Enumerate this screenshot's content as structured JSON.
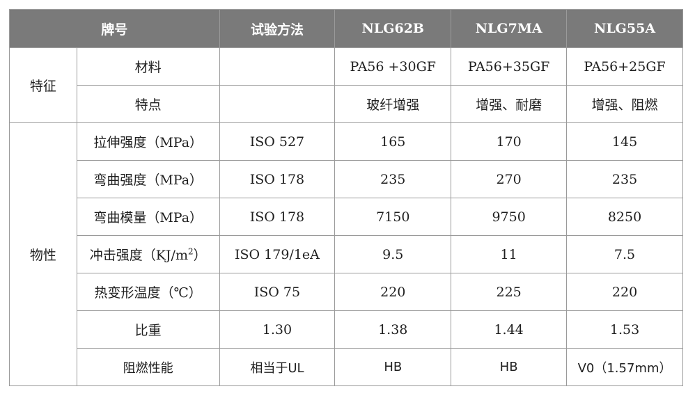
{
  "header": {
    "brand": "牌号",
    "method": "试验方法",
    "col1": "NLG62B",
    "col2": "NLG7MA",
    "col3": "NLG55A"
  },
  "groups": {
    "features": "特征",
    "properties": "物性"
  },
  "rows": [
    {
      "label": "材料",
      "method": "",
      "v1": "PA56 +30GF",
      "v2": "PA56+35GF",
      "v3": "PA56+25GF"
    },
    {
      "label": "特点",
      "method": "",
      "v1": "玻纤增强",
      "v2": "增强、耐磨",
      "v3": "增强、阻燃"
    },
    {
      "label": "拉伸强度（MPa）",
      "method": "ISO 527",
      "v1": "165",
      "v2": "170",
      "v3": "145"
    },
    {
      "label": "弯曲强度（MPa）",
      "method": "ISO 178",
      "v1": "235",
      "v2": "270",
      "v3": "235"
    },
    {
      "label": "弯曲模量（MPa）",
      "method": "ISO 178",
      "v1": "7150",
      "v2": "9750",
      "v3": "8250"
    },
    {
      "label": "冲击强度（KJ/m",
      "label_sup": "2",
      "label_end": "）",
      "method": "ISO 179/1eA",
      "v1": "9.5",
      "v2": "11",
      "v3": "7.5"
    },
    {
      "label": "热变形温度（℃）",
      "method": "ISO 75",
      "v1": "220",
      "v2": "225",
      "v3": "220"
    },
    {
      "label": "比重",
      "method": "1.30",
      "v1": "1.38",
      "v2": "1.44",
      "v3": "1.53"
    },
    {
      "label": "阻燃性能",
      "method": "相当于UL",
      "v1": "HB",
      "v2": "HB",
      "v3": "V0（1.57mm）"
    }
  ]
}
